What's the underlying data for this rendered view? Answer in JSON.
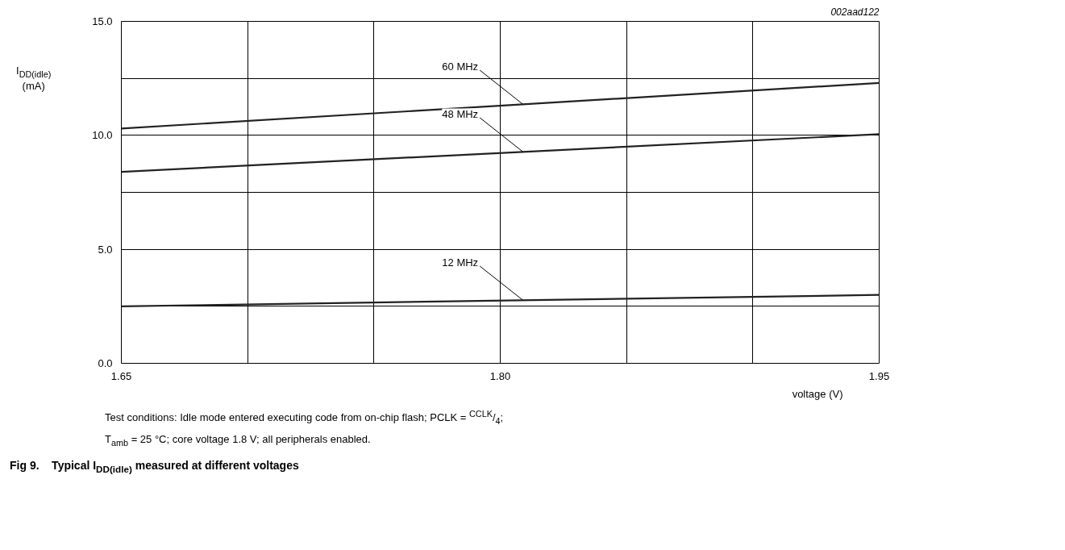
{
  "chart_data": {
    "type": "line",
    "title": "Fig 9.    Typical I$_{DD(idle)}$ measured at different voltages",
    "xlabel": "voltage (V)",
    "ylabel": "I$_{DD(idle)}$ (mA)",
    "annotations": [
      "002aad122",
      "Test conditions: Idle mode entered executing code from on-chip flash; PCLK = $^{CCLK}$/$_{4}$;",
      "T$_{amb}$ = 25 °C; core voltage 1.8 V; all peripherals enabled."
    ],
    "x": [
      1.65,
      1.95
    ],
    "series": [
      {
        "name": "60 MHz",
        "color": "#222222",
        "values": [
          10.3,
          12.3
        ]
      },
      {
        "name": "48 MHz",
        "color": "#222222",
        "values": [
          8.4,
          10.05
        ]
      },
      {
        "name": "12 MHz",
        "color": "#222222",
        "values": [
          2.5,
          3.0
        ]
      }
    ],
    "xlim": [
      1.65,
      1.95
    ],
    "ylim": [
      0,
      15
    ],
    "xticks": [
      1.65,
      {
        "value": 1.7,
        "label": null
      },
      {
        "value": 1.75,
        "label": null
      },
      {
        "value": 1.8,
        "label": "1.80"
      },
      {
        "value": 1.85,
        "label": null
      },
      {
        "value": 1.9,
        "label": null
      },
      1.95
    ],
    "yticks": [
      {
        "value": 0,
        "label": "0.0"
      },
      {
        "value": 2.5,
        "label": null
      },
      {
        "value": 5,
        "label": "5.0"
      },
      {
        "value": 7.5,
        "label": null
      },
      {
        "value": 10,
        "label": "10.0"
      },
      {
        "value": 12.5,
        "label": null
      },
      {
        "value": 15,
        "label": "15.0"
      }
    ],
    "grid": true,
    "line_style": "solid",
    "marker": "none"
  }
}
